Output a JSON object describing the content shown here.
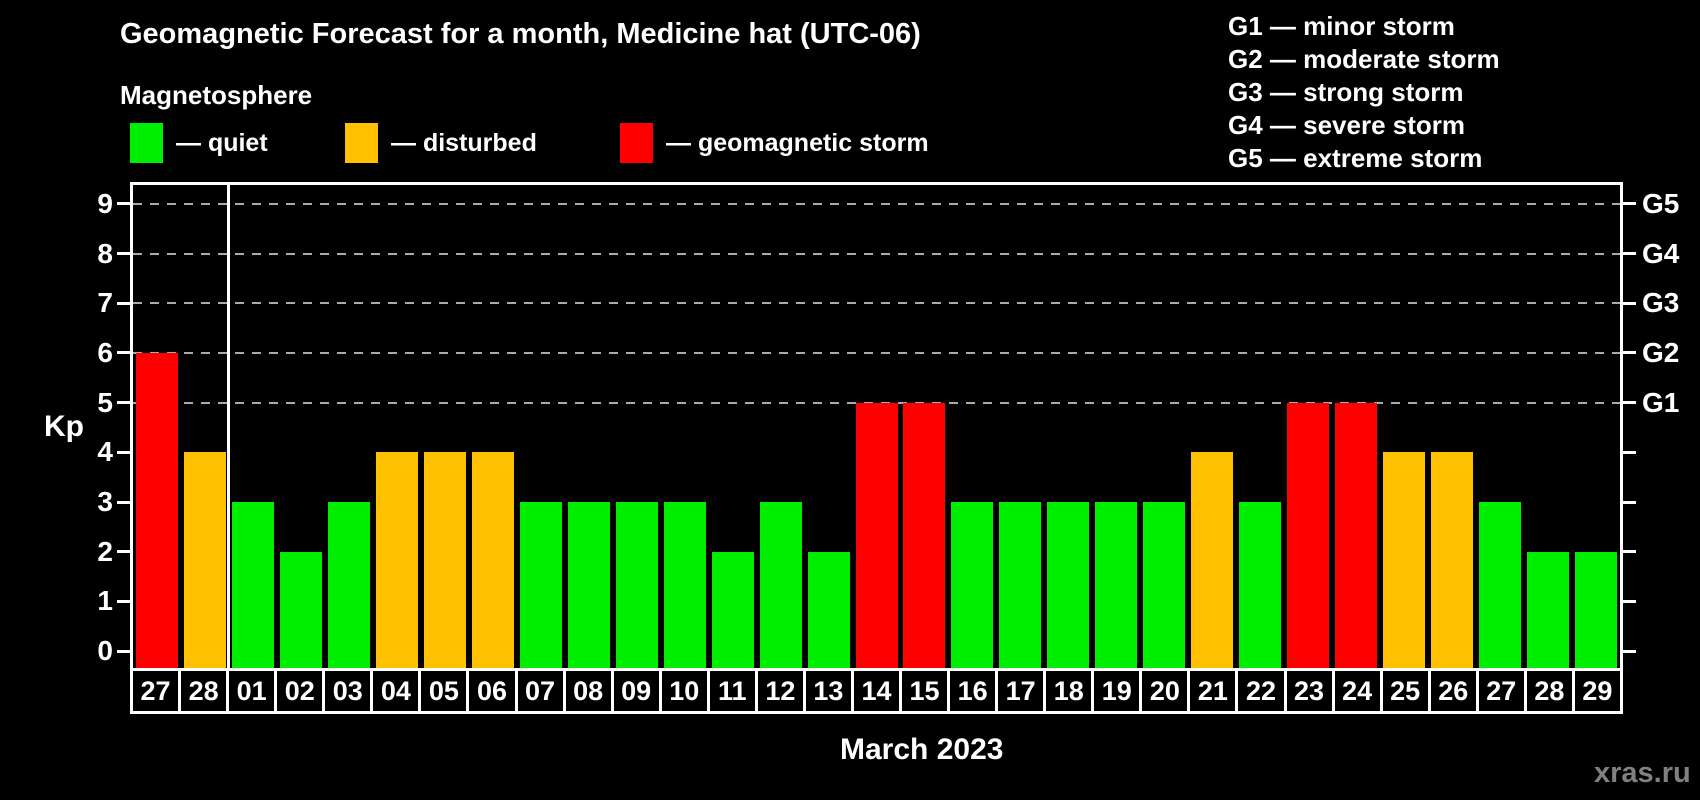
{
  "watermark": "xras.ru",
  "colors": {
    "quiet": "#00ee00",
    "disturbed": "#ffc000",
    "storm": "#ff0000",
    "axis": "#ffffff",
    "grid": "#aaaaaa",
    "watermark_text": "#808080"
  },
  "legend": {
    "items": [
      {
        "key": "quiet",
        "label": "— quiet"
      },
      {
        "key": "disturbed",
        "label": "— disturbed"
      },
      {
        "key": "storm",
        "label": "— geomagnetic storm"
      }
    ]
  },
  "g_legend": {
    "items": [
      "G1 — minor storm",
      "G2 — moderate storm",
      "G3 — strong storm",
      "G4 — severe storm",
      "G5 — extreme storm"
    ]
  },
  "chart_data": {
    "type": "bar",
    "title": "Geomagnetic Forecast for a month, Medicine hat (UTC-06)",
    "subtitle": "Magnetosphere",
    "ylabel": "Kp",
    "xlabel": "March 2023",
    "categories": [
      "27",
      "28",
      "01",
      "02",
      "03",
      "04",
      "05",
      "06",
      "07",
      "08",
      "09",
      "10",
      "11",
      "12",
      "13",
      "14",
      "15",
      "16",
      "17",
      "18",
      "19",
      "20",
      "21",
      "22",
      "23",
      "24",
      "25",
      "26",
      "27",
      "28",
      "29"
    ],
    "values": [
      6,
      4,
      3,
      2,
      3,
      4,
      4,
      4,
      3,
      3,
      3,
      3,
      2,
      3,
      2,
      5,
      5,
      3,
      3,
      3,
      3,
      3,
      4,
      3,
      5,
      5,
      4,
      4,
      3,
      2,
      2
    ],
    "statuses": [
      "storm",
      "disturbed",
      "quiet",
      "quiet",
      "quiet",
      "disturbed",
      "disturbed",
      "disturbed",
      "quiet",
      "quiet",
      "quiet",
      "quiet",
      "quiet",
      "quiet",
      "quiet",
      "storm",
      "storm",
      "quiet",
      "quiet",
      "quiet",
      "quiet",
      "quiet",
      "disturbed",
      "quiet",
      "storm",
      "storm",
      "disturbed",
      "disturbed",
      "quiet",
      "quiet",
      "quiet"
    ],
    "ylim": [
      -0.34,
      9.38
    ],
    "yticks": [
      0,
      1,
      2,
      3,
      4,
      5,
      6,
      7,
      8,
      9
    ],
    "gridlines": [
      5,
      6,
      7,
      8,
      9
    ],
    "grid_style": "horizontal dashed",
    "legend_position": "top-left",
    "right_axis": [
      {
        "kp": 5,
        "label": "G1"
      },
      {
        "kp": 6,
        "label": "G2"
      },
      {
        "kp": 7,
        "label": "G3"
      },
      {
        "kp": 8,
        "label": "G4"
      },
      {
        "kp": 9,
        "label": "G5"
      }
    ],
    "month_separator_after_index": 2
  }
}
